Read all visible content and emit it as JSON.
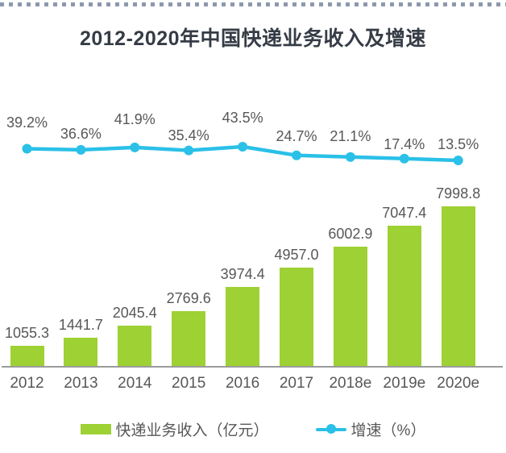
{
  "page": {
    "title": "2012-2020年中国快递业务收入及增速"
  },
  "chart_data": {
    "type": "bar",
    "subtype": "bar+line-combo",
    "title": "2012-2020年中国快递业务收入及增速",
    "categories": [
      "2012",
      "2013",
      "2014",
      "2015",
      "2016",
      "2017",
      "2018e",
      "2019e",
      "2020e"
    ],
    "series": [
      {
        "name": "快递业务收入（亿元）",
        "type": "bar",
        "color": "#9ed133",
        "values": [
          1055.3,
          1441.7,
          2045.4,
          2769.6,
          3974.4,
          4957.0,
          6002.9,
          7047.4,
          7998.8
        ],
        "labels": [
          "1055.3",
          "1441.7",
          "2045.4",
          "2769.6",
          "3974.4",
          "4957.0",
          "6002.9",
          "7047.4",
          "7998.8"
        ]
      },
      {
        "name": "增速（%）",
        "type": "line",
        "color": "#2ac0e8",
        "values": [
          39.2,
          36.6,
          41.9,
          35.4,
          43.5,
          24.7,
          21.1,
          17.4,
          13.5
        ],
        "labels": [
          "39.2%",
          "36.6%",
          "41.9%",
          "35.4%",
          "43.5%",
          "24.7%",
          "21.1%",
          "17.4%",
          "13.5%"
        ]
      }
    ],
    "xlabel": "",
    "ylabel": "",
    "ylim_bar": [
      0,
      8800
    ],
    "ylim_line": [
      0,
      50
    ],
    "grid": false,
    "legend_position": "bottom",
    "legend": [
      "快递业务收入（亿元）",
      "增速（%）"
    ]
  },
  "colors": {
    "bar": "#9ed133",
    "line": "#2ac0e8",
    "text": "#595757",
    "title": "#363c46",
    "axis": "#9b9b9b",
    "top_dots": "#8c99ad"
  }
}
